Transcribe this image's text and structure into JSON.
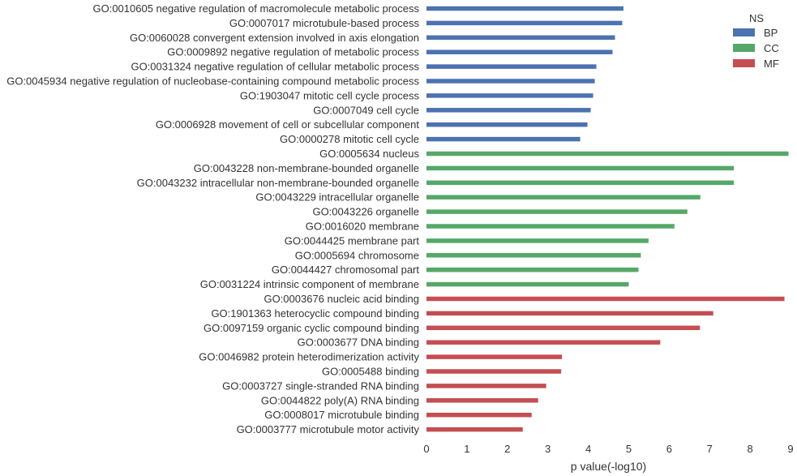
{
  "chart_data": {
    "type": "bar",
    "orientation": "horizontal",
    "xlabel": "p value(-log10)",
    "ylabel": "",
    "xlim": [
      0,
      9
    ],
    "xticks": [
      0,
      1,
      2,
      3,
      4,
      5,
      6,
      7,
      8,
      9
    ],
    "grid": false,
    "legend": {
      "title": "NS",
      "placement": "top-right",
      "entries": [
        {
          "name": "BP",
          "color": "#4c72b0"
        },
        {
          "name": "CC",
          "color": "#55a868"
        },
        {
          "name": "MF",
          "color": "#c44e52"
        }
      ]
    },
    "bars": [
      {
        "label": "GO:0010605 negative regulation of macromolecule metabolic process",
        "value": 4.87,
        "group": "BP"
      },
      {
        "label": "GO:0007017 microtubule-based process",
        "value": 4.84,
        "group": "BP"
      },
      {
        "label": "GO:0060028 convergent extension involved in axis elongation",
        "value": 4.66,
        "group": "BP"
      },
      {
        "label": "GO:0009892 negative regulation of metabolic process",
        "value": 4.6,
        "group": "BP"
      },
      {
        "label": "GO:0031324 negative regulation of cellular metabolic process",
        "value": 4.2,
        "group": "BP"
      },
      {
        "label": "GO:0045934 negative regulation of nucleobase-containing compound metabolic process",
        "value": 4.16,
        "group": "BP"
      },
      {
        "label": "GO:1903047 mitotic cell cycle process",
        "value": 4.12,
        "group": "BP"
      },
      {
        "label": "GO:0007049 cell cycle",
        "value": 4.06,
        "group": "BP"
      },
      {
        "label": "GO:0006928 movement of cell or subcellular component",
        "value": 3.98,
        "group": "BP"
      },
      {
        "label": "GO:0000278 mitotic cell cycle",
        "value": 3.8,
        "group": "BP"
      },
      {
        "label": "GO:0005634 nucleus",
        "value": 8.95,
        "group": "CC"
      },
      {
        "label": "GO:0043228 non-membrane-bounded organelle",
        "value": 7.6,
        "group": "CC"
      },
      {
        "label": "GO:0043232 intracellular non-membrane-bounded organelle",
        "value": 7.6,
        "group": "CC"
      },
      {
        "label": "GO:0043229 intracellular organelle",
        "value": 6.77,
        "group": "CC"
      },
      {
        "label": "GO:0043226 organelle",
        "value": 6.45,
        "group": "CC"
      },
      {
        "label": "GO:0016020 membrane",
        "value": 6.13,
        "group": "CC"
      },
      {
        "label": "GO:0044425 membrane part",
        "value": 5.49,
        "group": "CC"
      },
      {
        "label": "GO:0005694 chromosome",
        "value": 5.3,
        "group": "CC"
      },
      {
        "label": "GO:0044427 chromosomal part",
        "value": 5.24,
        "group": "CC"
      },
      {
        "label": "GO:0031224 intrinsic component of membrane",
        "value": 5.0,
        "group": "CC"
      },
      {
        "label": "GO:0003676 nucleic acid binding",
        "value": 8.85,
        "group": "MF"
      },
      {
        "label": "GO:1901363 heterocyclic compound binding",
        "value": 7.09,
        "group": "MF"
      },
      {
        "label": "GO:0097159 organic cyclic compound binding",
        "value": 6.76,
        "group": "MF"
      },
      {
        "label": "GO:0003677 DNA binding",
        "value": 5.78,
        "group": "MF"
      },
      {
        "label": "GO:0046982 protein heterodimerization activity",
        "value": 3.35,
        "group": "MF"
      },
      {
        "label": "GO:0005488 binding",
        "value": 3.33,
        "group": "MF"
      },
      {
        "label": "GO:0003727 single-stranded RNA binding",
        "value": 2.96,
        "group": "MF"
      },
      {
        "label": "GO:0044822 poly(A) RNA binding",
        "value": 2.76,
        "group": "MF"
      },
      {
        "label": "GO:0008017 microtubule binding",
        "value": 2.6,
        "group": "MF"
      },
      {
        "label": "GO:0003777 microtubule motor activity",
        "value": 2.38,
        "group": "MF"
      }
    ]
  }
}
